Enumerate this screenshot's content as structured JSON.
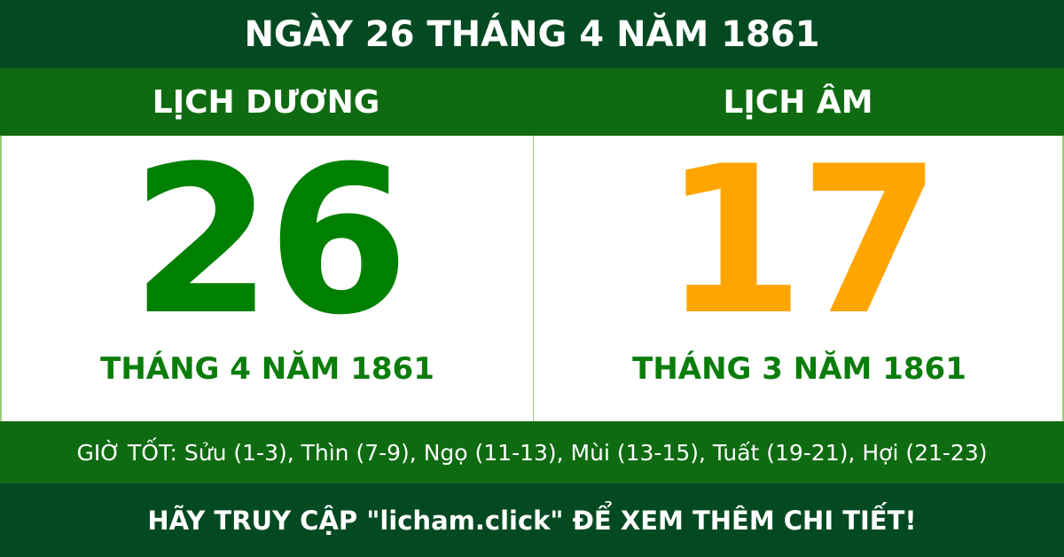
{
  "title": "NGÀY 26 THÁNG 4 NĂM 1861",
  "solar": {
    "label": "LỊCH DƯƠNG",
    "day": "26",
    "month_year": "THÁNG 4 NĂM 1861"
  },
  "lunar": {
    "label": "LỊCH ÂM",
    "day": "17",
    "month_year": "THÁNG 3 NĂM 1861"
  },
  "good_hours": "GIỜ TỐT: Sửu (1-3), Thìn (7-9), Ngọ (11-13), Mùi (13-15), Tuất (19-21), Hợi (21-23)",
  "footer": "HÃY TRUY CẬP \"licham.click\" ĐỂ XEM THÊM CHI TIẾT!",
  "colors": {
    "dark_green": "#034a22",
    "band_green": "#0f6b11",
    "solar_day": "#008000",
    "lunar_day": "#ffa500"
  }
}
